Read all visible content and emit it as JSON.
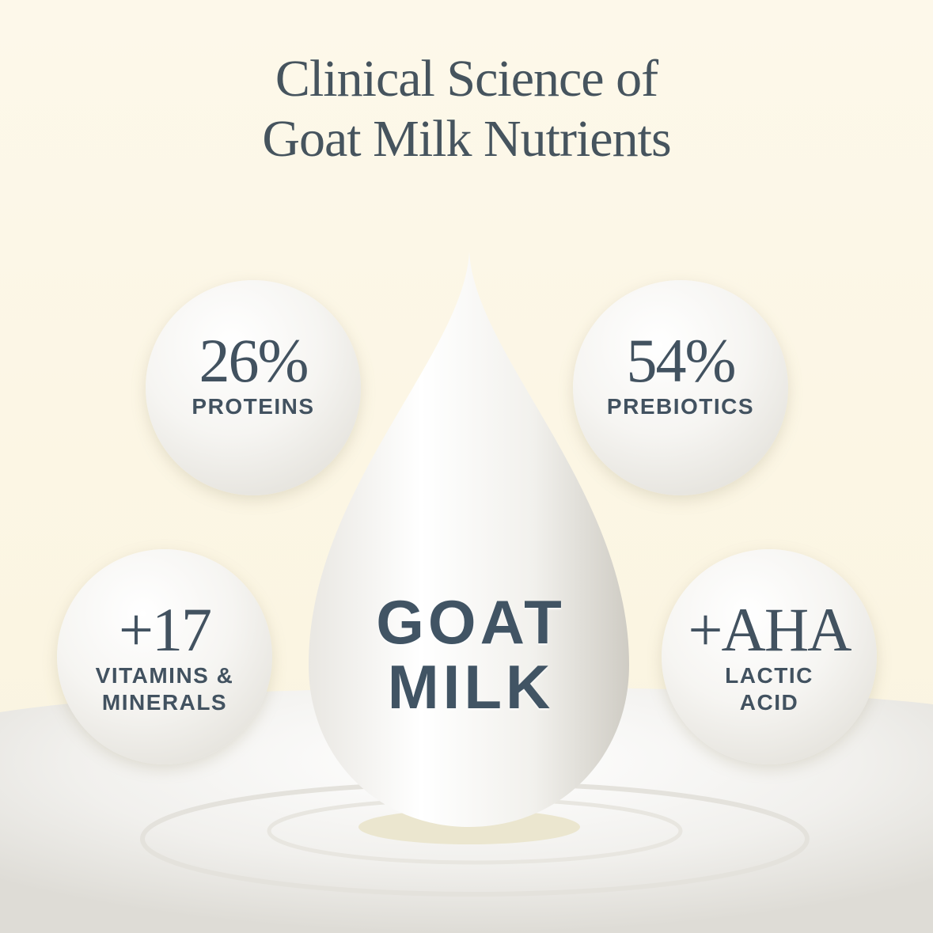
{
  "title": {
    "line1": "Clinical Science of",
    "line2": "Goat Milk Nutrients"
  },
  "center": {
    "line1": "GOAT",
    "line2": "MILK"
  },
  "bubbles": [
    {
      "value": "26%",
      "label": "PROTEINS"
    },
    {
      "value": "54%",
      "label": "PREBIOTICS"
    },
    {
      "value": "+17",
      "label1": "VITAMINS &",
      "label2": "MINERALS"
    },
    {
      "value": "+AHA",
      "label1": "LACTIC",
      "label2": "ACID"
    }
  ],
  "colors": {
    "text": "#425260",
    "background": "#fdf8ea"
  }
}
